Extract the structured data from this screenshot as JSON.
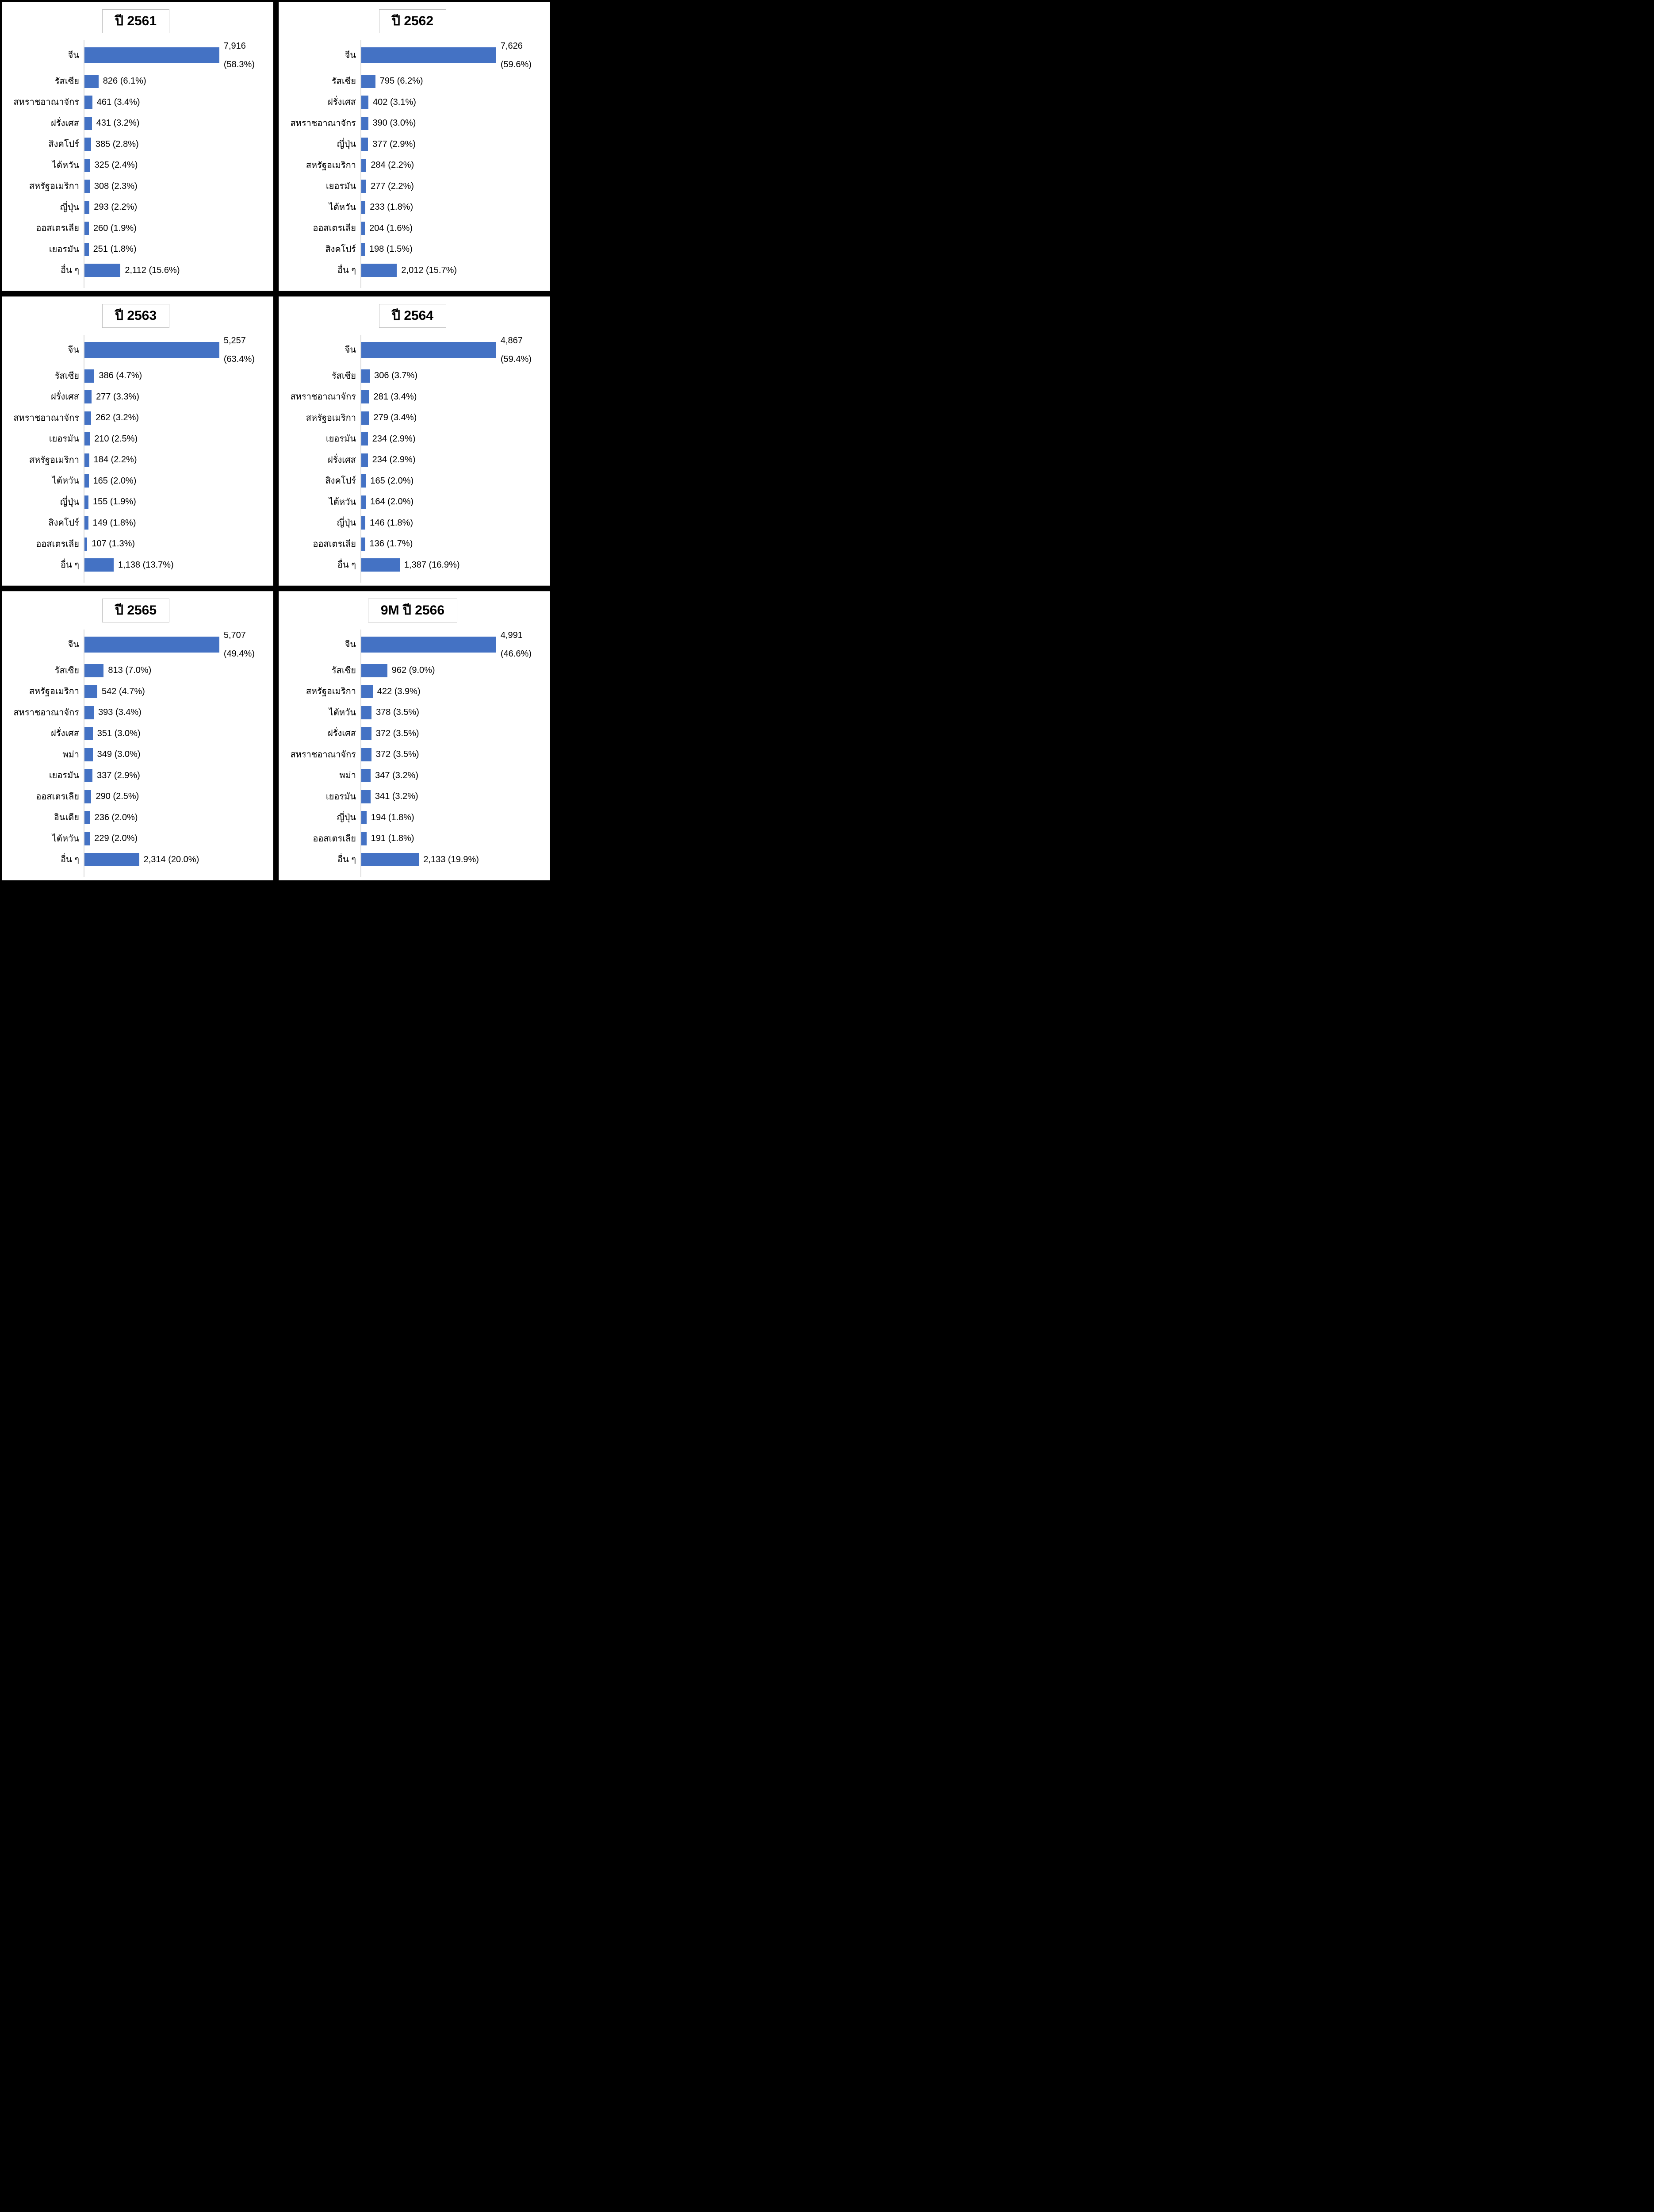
{
  "layout_colors": {
    "gap_background": "#000000",
    "panel_background": "#ffffff",
    "panel_border": "#bfbfbf",
    "axis_line": "#d9d9d9",
    "text": "#000000"
  },
  "chart_data": [
    {
      "type": "bar",
      "orientation": "horizontal",
      "title": "ปี 2561",
      "bar_color": "#4472C4",
      "legend": "none",
      "grid": "off",
      "categories": [
        "จีน",
        "รัสเซีย",
        "สหราชอาณาจักร",
        "ฝรั่งเศส",
        "สิงคโปร์",
        "ไต้หวัน",
        "สหรัฐอเมริกา",
        "ญี่ปุ่น",
        "ออสเตรเลีย",
        "เยอรมัน",
        "อื่น ๆ"
      ],
      "values": [
        7916,
        826,
        461,
        431,
        385,
        325,
        308,
        293,
        260,
        251,
        2112
      ],
      "percents": [
        58.3,
        6.1,
        3.4,
        3.2,
        2.8,
        2.4,
        2.3,
        2.2,
        1.9,
        1.8,
        15.6
      ],
      "value_labels": [
        "7,916\n(58.3%)",
        "826 (6.1%)",
        "461 (3.4%)",
        "431 (3.2%)",
        "385 (2.8%)",
        "325 (2.4%)",
        "308 (2.3%)",
        "293 (2.2%)",
        "260 (1.9%)",
        "251 (1.8%)",
        "2,112 (15.6%)"
      ]
    },
    {
      "type": "bar",
      "orientation": "horizontal",
      "title": "ปี 2562",
      "bar_color": "#4472C4",
      "legend": "none",
      "grid": "off",
      "categories": [
        "จีน",
        "รัสเซีย",
        "ฝรั่งเศส",
        "สหราชอาณาจักร",
        "ญี่ปุ่น",
        "สหรัฐอเมริกา",
        "เยอรมัน",
        "ไต้หวัน",
        "ออสเตรเลีย",
        "สิงคโปร์",
        "อื่น ๆ"
      ],
      "values": [
        7626,
        795,
        402,
        390,
        377,
        284,
        277,
        233,
        204,
        198,
        2012
      ],
      "percents": [
        59.6,
        6.2,
        3.1,
        3.0,
        2.9,
        2.2,
        2.2,
        1.8,
        1.6,
        1.5,
        15.7
      ],
      "value_labels": [
        "7,626\n(59.6%)",
        "795 (6.2%)",
        "402 (3.1%)",
        "390 (3.0%)",
        "377 (2.9%)",
        "284 (2.2%)",
        "277 (2.2%)",
        "233 (1.8%)",
        "204 (1.6%)",
        "198 (1.5%)",
        "2,012 (15.7%)"
      ]
    },
    {
      "type": "bar",
      "orientation": "horizontal",
      "title": "ปี 2563",
      "bar_color": "#4472C4",
      "legend": "none",
      "grid": "off",
      "categories": [
        "จีน",
        "รัสเซีย",
        "ฝรั่งเศส",
        "สหราชอาณาจักร",
        "เยอรมัน",
        "สหรัฐอเมริกา",
        "ไต้หวัน",
        "ญี่ปุ่น",
        "สิงคโปร์",
        "ออสเตรเลีย",
        "อื่น ๆ"
      ],
      "values": [
        5257,
        386,
        277,
        262,
        210,
        184,
        165,
        155,
        149,
        107,
        1138
      ],
      "percents": [
        63.4,
        4.7,
        3.3,
        3.2,
        2.5,
        2.2,
        2.0,
        1.9,
        1.8,
        1.3,
        13.7
      ],
      "value_labels": [
        "5,257\n(63.4%)",
        "386 (4.7%)",
        "277 (3.3%)",
        "262 (3.2%)",
        "210 (2.5%)",
        "184 (2.2%)",
        "165 (2.0%)",
        "155 (1.9%)",
        "149 (1.8%)",
        "107 (1.3%)",
        "1,138 (13.7%)"
      ]
    },
    {
      "type": "bar",
      "orientation": "horizontal",
      "title": "ปี 2564",
      "bar_color": "#4472C4",
      "legend": "none",
      "grid": "off",
      "categories": [
        "จีน",
        "รัสเซีย",
        "สหราชอาณาจักร",
        "สหรัฐอเมริกา",
        "เยอรมัน",
        "ฝรั่งเศส",
        "สิงคโปร์",
        "ไต้หวัน",
        "ญี่ปุ่น",
        "ออสเตรเลีย",
        "อื่น ๆ"
      ],
      "values": [
        4867,
        306,
        281,
        279,
        234,
        234,
        165,
        164,
        146,
        136,
        1387
      ],
      "percents": [
        59.4,
        3.7,
        3.4,
        3.4,
        2.9,
        2.9,
        2.0,
        2.0,
        1.8,
        1.7,
        16.9
      ],
      "value_labels": [
        "4,867\n(59.4%)",
        "306 (3.7%)",
        "281 (3.4%)",
        "279 (3.4%)",
        "234 (2.9%)",
        "234 (2.9%)",
        "165 (2.0%)",
        "164 (2.0%)",
        "146 (1.8%)",
        "136 (1.7%)",
        "1,387 (16.9%)"
      ]
    },
    {
      "type": "bar",
      "orientation": "horizontal",
      "title": "ปี 2565",
      "bar_color": "#4472C4",
      "legend": "none",
      "grid": "off",
      "categories": [
        "จีน",
        "รัสเซีย",
        "สหรัฐอเมริกา",
        "สหราชอาณาจักร",
        "ฝรั่งเศส",
        "พม่า",
        "เยอรมัน",
        "ออสเตรเลีย",
        "อินเดีย",
        "ไต้หวัน",
        "อื่น ๆ"
      ],
      "values": [
        5707,
        813,
        542,
        393,
        351,
        349,
        337,
        290,
        236,
        229,
        2314
      ],
      "percents": [
        49.4,
        7.0,
        4.7,
        3.4,
        3.0,
        3.0,
        2.9,
        2.5,
        2.0,
        2.0,
        20.0
      ],
      "value_labels": [
        "5,707\n(49.4%)",
        "813 (7.0%)",
        "542 (4.7%)",
        "393 (3.4%)",
        "351 (3.0%)",
        "349 (3.0%)",
        "337 (2.9%)",
        "290 (2.5%)",
        "236 (2.0%)",
        "229 (2.0%)",
        "2,314 (20.0%)"
      ]
    },
    {
      "type": "bar",
      "orientation": "horizontal",
      "title": "9M ปี 2566",
      "bar_color": "#4472C4",
      "legend": "none",
      "grid": "off",
      "categories": [
        "จีน",
        "รัสเซีย",
        "สหรัฐอเมริกา",
        "ไต้หวัน",
        "ฝรั่งเศส",
        "สหราชอาณาจักร",
        "พม่า",
        "เยอรมัน",
        "ญี่ปุ่น",
        "ออสเตรเลีย",
        "อื่น ๆ"
      ],
      "values": [
        4991,
        962,
        422,
        378,
        372,
        372,
        347,
        341,
        194,
        191,
        2133
      ],
      "percents": [
        46.6,
        9.0,
        3.9,
        3.5,
        3.5,
        3.5,
        3.2,
        3.2,
        1.8,
        1.8,
        19.9
      ],
      "value_labels": [
        "4,991\n(46.6%)",
        "962 (9.0%)",
        "422 (3.9%)",
        "378 (3.5%)",
        "372 (3.5%)",
        "372 (3.5%)",
        "347 (3.2%)",
        "341 (3.2%)",
        "194 (1.8%)",
        "191 (1.8%)",
        "2,133 (19.9%)"
      ]
    }
  ]
}
